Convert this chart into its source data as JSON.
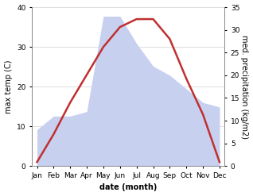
{
  "months": [
    "Jan",
    "Feb",
    "Mar",
    "Apr",
    "May",
    "Jun",
    "Jul",
    "Aug",
    "Sep",
    "Oct",
    "Nov",
    "Dec"
  ],
  "temperature": [
    1,
    8,
    16,
    23,
    30,
    35,
    37,
    37,
    32,
    22,
    13,
    1
  ],
  "precipitation": [
    8,
    11,
    11,
    12,
    33,
    33,
    27,
    22,
    20,
    17,
    14,
    13
  ],
  "temp_color": "#c03030",
  "precip_fill_color": "#c8d0f0",
  "precip_edge_color": "#b0b8e8",
  "temp_ylim": [
    0,
    40
  ],
  "precip_ylim": [
    0,
    35
  ],
  "temp_ylabel": "max temp (C)",
  "precip_ylabel": "med. precipitation (kg/m2)",
  "xlabel": "date (month)",
  "temp_yticks": [
    0,
    10,
    20,
    30,
    40
  ],
  "precip_yticks": [
    0,
    5,
    10,
    15,
    20,
    25,
    30,
    35
  ],
  "background_color": "#ffffff",
  "line_width": 1.8,
  "tick_fontsize": 6.5,
  "label_fontsize": 7,
  "xlabel_fontsize": 7
}
